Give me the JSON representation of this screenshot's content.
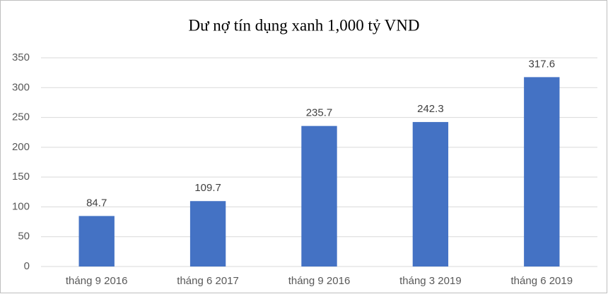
{
  "chart_data": {
    "type": "bar",
    "title": "Dư nợ tín dụng xanh 1,000 tỷ VND",
    "categories": [
      "tháng 9 2016",
      "tháng 6 2017",
      "tháng 9 2016",
      "tháng 3 2019",
      "tháng 6 2019"
    ],
    "values": [
      84.7,
      109.7,
      235.7,
      242.3,
      317.6
    ],
    "color": "#4472c4",
    "ylim": [
      0,
      350
    ],
    "yticks": [
      0,
      50,
      100,
      150,
      200,
      250,
      300,
      350
    ],
    "grid": true
  }
}
